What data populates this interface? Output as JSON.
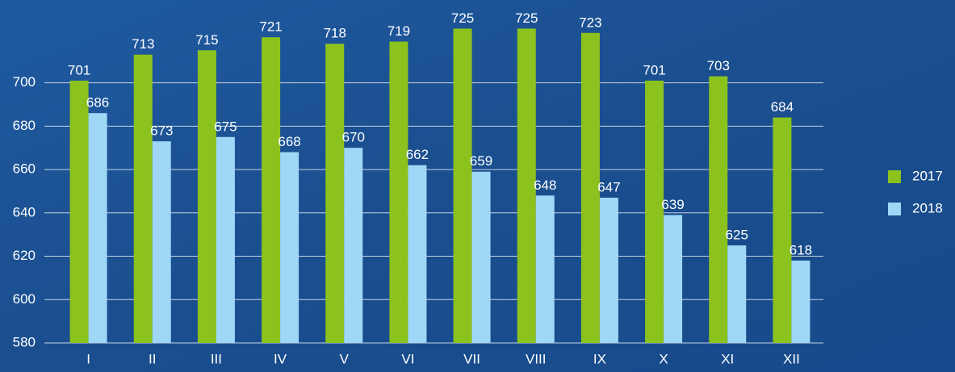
{
  "chart_data": {
    "type": "bar",
    "categories": [
      "I",
      "II",
      "III",
      "IV",
      "V",
      "VI",
      "VII",
      "VIII",
      "IX",
      "X",
      "XI",
      "XII"
    ],
    "series": [
      {
        "name": "2017",
        "color": "#8cc21e",
        "values": [
          701,
          713,
          715,
          721,
          718,
          719,
          725,
          725,
          723,
          701,
          703,
          684
        ]
      },
      {
        "name": "2018",
        "color": "#9fd8f7",
        "values": [
          686,
          673,
          675,
          668,
          670,
          662,
          659,
          648,
          647,
          639,
          625,
          618
        ]
      }
    ],
    "ylim": [
      580,
      730
    ],
    "yticks": [
      580,
      600,
      620,
      640,
      660,
      680,
      700
    ],
    "grid": true,
    "legend": "right"
  }
}
